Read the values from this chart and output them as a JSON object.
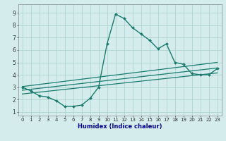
{
  "bg_color": "#d4edec",
  "grid_color": "#aed4d0",
  "line_color": "#1a7a6e",
  "x_label": "Humidex (Indice chaleur)",
  "xlim": [
    -0.5,
    23.5
  ],
  "ylim": [
    0.7,
    9.7
  ],
  "yticks": [
    1,
    2,
    3,
    4,
    5,
    6,
    7,
    8,
    9
  ],
  "xticks": [
    0,
    1,
    2,
    3,
    4,
    5,
    6,
    7,
    8,
    9,
    10,
    11,
    12,
    13,
    14,
    15,
    16,
    17,
    18,
    19,
    20,
    21,
    22,
    23
  ],
  "series": [
    {
      "x": [
        0,
        1,
        2,
        3,
        4,
        5,
        6,
        7,
        8,
        9,
        10,
        11,
        12,
        13,
        14,
        15,
        16,
        17,
        18,
        19,
        20,
        21,
        22,
        23
      ],
      "y": [
        3.0,
        2.7,
        2.3,
        2.2,
        1.9,
        1.45,
        1.45,
        1.55,
        2.1,
        3.0,
        6.5,
        8.9,
        8.55,
        7.8,
        7.3,
        6.8,
        6.1,
        6.5,
        5.0,
        4.85,
        4.1,
        4.0,
        4.0,
        4.5
      ],
      "marker": true,
      "linewidth": 1.0,
      "markersize": 2.0
    },
    {
      "x": [
        0,
        23
      ],
      "y": [
        3.05,
        5.0
      ],
      "marker": false,
      "linewidth": 0.9
    },
    {
      "x": [
        0,
        23
      ],
      "y": [
        2.75,
        4.55
      ],
      "marker": false,
      "linewidth": 0.9
    },
    {
      "x": [
        0,
        23
      ],
      "y": [
        2.45,
        4.15
      ],
      "marker": false,
      "linewidth": 0.9
    }
  ],
  "xlabel_fontsize": 6.0,
  "xlabel_color": "#00008b",
  "tick_fontsize": 5.0
}
